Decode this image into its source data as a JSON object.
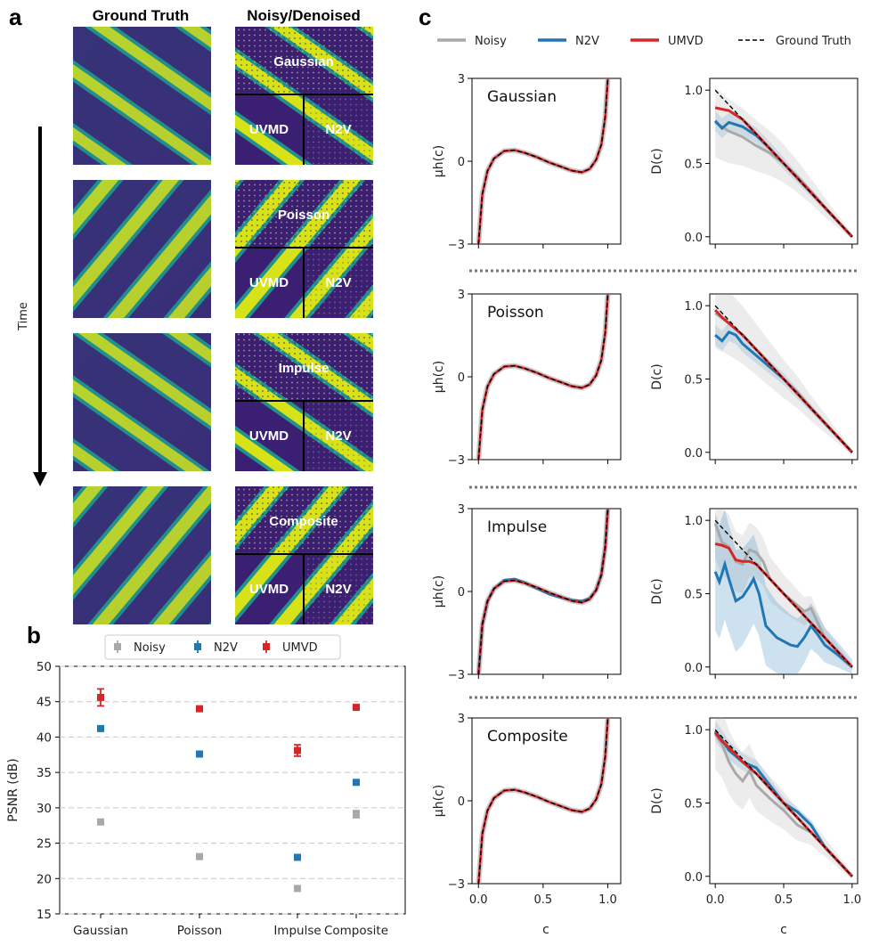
{
  "panel_letters": {
    "a": "a",
    "b": "b",
    "c": "c"
  },
  "panel_a": {
    "col_headers": [
      "Ground Truth",
      "Noisy/Denoised"
    ],
    "time_label": "Time",
    "rows": [
      {
        "noise": "Gaussian",
        "left_label": "UVMD",
        "right_label": "N2V"
      },
      {
        "noise": "Poisson",
        "left_label": "UVMD",
        "right_label": "N2V"
      },
      {
        "noise": "Impulse",
        "left_label": "UVMD",
        "right_label": "N2V"
      },
      {
        "noise": "Composite",
        "left_label": "UVMD",
        "right_label": "N2V"
      }
    ],
    "colors": {
      "low": "#3b1f73",
      "mid": "#21918c",
      "high": "#d8e219"
    }
  },
  "chart_data": [
    {
      "type": "scatter",
      "panel": "b",
      "categories": [
        "Gaussian",
        "Poisson",
        "Impulse",
        "Composite"
      ],
      "ylabel": "PSNR (dB)",
      "ylim": [
        15,
        50
      ],
      "yticks": [
        "15",
        "20",
        "25",
        "30",
        "35",
        "40",
        "45",
        "50"
      ],
      "grid": true,
      "legend_position": "top",
      "series": [
        {
          "name": "Noisy",
          "color": "#a9a9a9",
          "values": [
            28,
            23.1,
            18.6,
            29.1
          ],
          "err": [
            0.3,
            0.3,
            0.3,
            0.5
          ]
        },
        {
          "name": "N2V",
          "color": "#1f77b4",
          "values": [
            41.2,
            37.6,
            23,
            33.6
          ],
          "err": [
            0.3,
            0.3,
            0.3,
            0.3
          ]
        },
        {
          "name": "UMVD",
          "color": "#d62728",
          "values": [
            45.6,
            44,
            38.1,
            44.2
          ],
          "err": [
            1.2,
            0.3,
            0.8,
            0.3
          ]
        }
      ]
    },
    {
      "type": "line",
      "panel": "c",
      "legend": [
        {
          "name": "Noisy",
          "color": "#a9a9a9",
          "style": "solid"
        },
        {
          "name": "N2V",
          "color": "#1f77b4",
          "style": "solid"
        },
        {
          "name": "UMVD",
          "color": "#d62728",
          "style": "solid"
        },
        {
          "name": "Ground Truth",
          "color": "#000000",
          "style": "dashed"
        }
      ],
      "xlabel": "c",
      "xticks": [
        "0.0",
        "0.5",
        "1.0"
      ],
      "mu": {
        "ylabel": "μh(c)",
        "ylim": [
          -3,
          3
        ],
        "yticks": [
          "3",
          "0",
          "−3"
        ],
        "ground_truth": {
          "x": [
            0.0,
            0.03,
            0.07,
            0.12,
            0.2,
            0.28,
            0.36,
            0.45,
            0.55,
            0.64,
            0.72,
            0.8,
            0.86,
            0.91,
            0.95,
            0.98,
            1.0
          ],
          "y": [
            -3.0,
            -1.2,
            -0.35,
            0.1,
            0.37,
            0.4,
            0.3,
            0.15,
            -0.05,
            -0.2,
            -0.34,
            -0.4,
            -0.28,
            0.05,
            0.6,
            1.6,
            3.0
          ]
        }
      },
      "D": {
        "ylabel": "D(c)",
        "ylim": [
          -0.05,
          1.08
        ],
        "yticks": [
          "1.0",
          "0.5",
          "0.0"
        ],
        "ground_truth": {
          "x": [
            0.0,
            1.0
          ],
          "y": [
            1.0,
            0.0
          ]
        }
      },
      "rows": [
        {
          "noise": "Gaussian",
          "D_noisy": {
            "x": [
              0.0,
              0.1,
              0.2,
              0.3,
              0.4,
              0.5,
              0.6,
              0.7,
              0.8,
              0.9,
              1.0
            ],
            "y": [
              0.78,
              0.72,
              0.68,
              0.62,
              0.57,
              0.5,
              0.41,
              0.31,
              0.2,
              0.1,
              0.0
            ]
          },
          "D_n2v": {
            "x": [
              0.0,
              0.05,
              0.1,
              0.2,
              0.3,
              0.4,
              0.5,
              0.6,
              0.7,
              0.8,
              0.9,
              1.0
            ],
            "y": [
              0.79,
              0.74,
              0.78,
              0.75,
              0.69,
              0.6,
              0.5,
              0.4,
              0.3,
              0.2,
              0.1,
              0.0
            ]
          },
          "D_umvd": {
            "x": [
              0.0,
              0.05,
              0.1,
              0.2,
              0.3,
              0.4,
              0.5,
              0.6,
              0.7,
              0.8,
              0.9,
              1.0
            ],
            "y": [
              0.88,
              0.87,
              0.86,
              0.8,
              0.7,
              0.6,
              0.5,
              0.4,
              0.3,
              0.2,
              0.1,
              0.0
            ]
          }
        },
        {
          "noise": "Poisson",
          "D_noisy": {
            "x": [
              0.0,
              0.1,
              0.2,
              0.3,
              0.4,
              0.5,
              0.6,
              0.7,
              0.8,
              0.9,
              1.0
            ],
            "y": [
              0.95,
              0.88,
              0.8,
              0.7,
              0.6,
              0.5,
              0.41,
              0.3,
              0.2,
              0.1,
              0.0
            ]
          },
          "D_n2v": {
            "x": [
              0.0,
              0.05,
              0.1,
              0.15,
              0.2,
              0.3,
              0.4,
              0.5,
              0.6,
              0.7,
              0.8,
              0.9,
              1.0
            ],
            "y": [
              0.8,
              0.76,
              0.82,
              0.8,
              0.74,
              0.66,
              0.58,
              0.5,
              0.4,
              0.3,
              0.2,
              0.1,
              0.0
            ]
          },
          "D_umvd": {
            "x": [
              0.0,
              0.05,
              0.1,
              0.2,
              0.3,
              0.4,
              0.5,
              0.6,
              0.7,
              0.8,
              0.9,
              1.0
            ],
            "y": [
              0.97,
              0.92,
              0.88,
              0.8,
              0.7,
              0.6,
              0.5,
              0.4,
              0.3,
              0.2,
              0.1,
              0.0
            ]
          }
        },
        {
          "noise": "Impulse",
          "D_noisy": {
            "x": [
              0.0,
              0.05,
              0.1,
              0.15,
              0.2,
              0.25,
              0.3,
              0.35,
              0.4,
              0.5,
              0.6,
              0.65,
              0.7,
              0.8,
              0.9,
              1.0
            ],
            "y": [
              0.98,
              0.85,
              0.82,
              0.72,
              0.7,
              0.8,
              0.78,
              0.72,
              0.6,
              0.5,
              0.42,
              0.38,
              0.4,
              0.2,
              0.1,
              0.0
            ]
          },
          "D_n2v": {
            "x": [
              0.0,
              0.03,
              0.07,
              0.1,
              0.15,
              0.2,
              0.25,
              0.28,
              0.32,
              0.37,
              0.45,
              0.55,
              0.6,
              0.65,
              0.7,
              0.75,
              0.8,
              0.9,
              1.0
            ],
            "y": [
              0.65,
              0.58,
              0.7,
              0.6,
              0.45,
              0.48,
              0.55,
              0.6,
              0.5,
              0.28,
              0.2,
              0.15,
              0.14,
              0.2,
              0.28,
              0.22,
              0.15,
              0.08,
              0.0
            ]
          },
          "D_umvd": {
            "x": [
              0.0,
              0.05,
              0.1,
              0.15,
              0.2,
              0.25,
              0.3,
              0.4,
              0.5,
              0.6,
              0.7,
              0.8,
              0.9,
              1.0
            ],
            "y": [
              0.84,
              0.83,
              0.81,
              0.73,
              0.72,
              0.72,
              0.7,
              0.6,
              0.5,
              0.4,
              0.3,
              0.2,
              0.1,
              0.0
            ]
          }
        },
        {
          "noise": "Composite",
          "D_noisy": {
            "x": [
              0.0,
              0.05,
              0.1,
              0.15,
              0.2,
              0.25,
              0.3,
              0.4,
              0.5,
              0.6,
              0.7,
              0.8,
              0.9,
              1.0
            ],
            "y": [
              0.97,
              0.9,
              0.78,
              0.7,
              0.65,
              0.72,
              0.62,
              0.53,
              0.45,
              0.35,
              0.3,
              0.2,
              0.1,
              0.0
            ]
          },
          "D_n2v": {
            "x": [
              0.0,
              0.05,
              0.1,
              0.2,
              0.3,
              0.4,
              0.5,
              0.6,
              0.7,
              0.8,
              0.9,
              1.0
            ],
            "y": [
              0.99,
              0.93,
              0.86,
              0.78,
              0.74,
              0.62,
              0.5,
              0.44,
              0.35,
              0.2,
              0.1,
              0.0
            ]
          },
          "D_umvd": {
            "x": [
              0.0,
              0.05,
              0.1,
              0.2,
              0.3,
              0.4,
              0.5,
              0.6,
              0.7,
              0.8,
              0.9,
              1.0
            ],
            "y": [
              0.98,
              0.92,
              0.88,
              0.78,
              0.7,
              0.6,
              0.5,
              0.4,
              0.3,
              0.2,
              0.1,
              0.0
            ]
          }
        }
      ]
    }
  ]
}
